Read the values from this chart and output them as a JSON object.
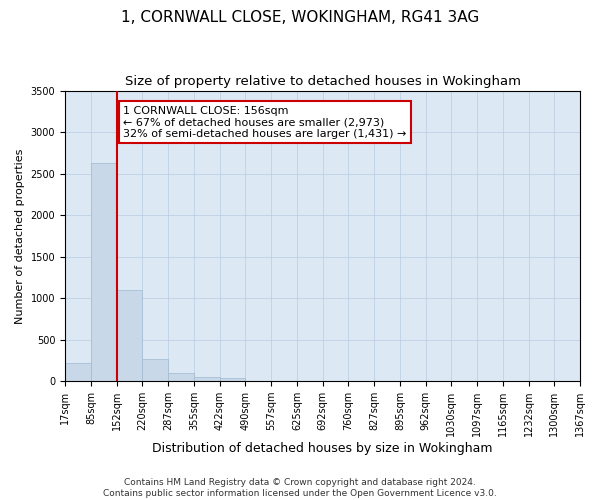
{
  "title_line1": "1, CORNWALL CLOSE, WOKINGHAM, RG41 3AG",
  "title_line2": "Size of property relative to detached houses in Wokingham",
  "xlabel": "Distribution of detached houses by size in Wokingham",
  "ylabel": "Number of detached properties",
  "bin_edges": [
    17,
    85,
    152,
    220,
    287,
    355,
    422,
    490,
    557,
    625,
    692,
    760,
    827,
    895,
    962,
    1030,
    1097,
    1165,
    1232,
    1300,
    1367
  ],
  "bar_heights": [
    220,
    2630,
    1100,
    265,
    95,
    55,
    40,
    0,
    0,
    0,
    0,
    0,
    0,
    0,
    0,
    0,
    0,
    0,
    0,
    0
  ],
  "bar_color": "#c8d8e8",
  "bar_edge_color": "#a0b8d0",
  "property_line_x": 152,
  "property_line_color": "#cc0000",
  "ylim": [
    0,
    3500
  ],
  "yticks": [
    0,
    500,
    1000,
    1500,
    2000,
    2500,
    3000,
    3500
  ],
  "annotation_box_text": "1 CORNWALL CLOSE: 156sqm\n← 67% of detached houses are smaller (2,973)\n32% of semi-detached houses are larger (1,431) →",
  "background_color": "#ffffff",
  "axes_background_color": "#dce9f5",
  "grid_color": "#b8cce0",
  "footer_line1": "Contains HM Land Registry data © Crown copyright and database right 2024.",
  "footer_line2": "Contains public sector information licensed under the Open Government Licence v3.0.",
  "title_fontsize": 11,
  "subtitle_fontsize": 9.5,
  "xlabel_fontsize": 9,
  "ylabel_fontsize": 8,
  "tick_label_fontsize": 7,
  "annotation_fontsize": 8,
  "footer_fontsize": 6.5
}
